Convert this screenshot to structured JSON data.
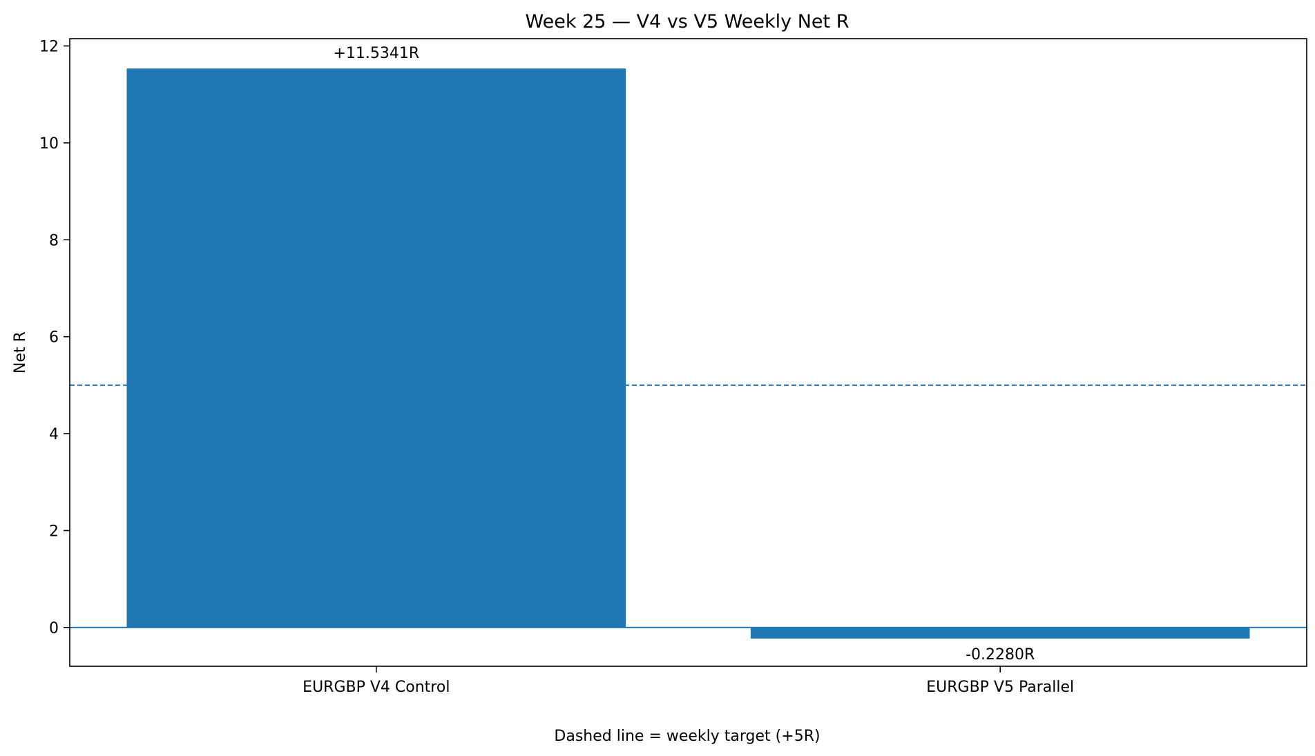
{
  "chart_data": {
    "type": "bar",
    "title": "Week 25 — V4 vs V5 Weekly Net R",
    "xlabel": "",
    "ylabel": "Net R",
    "categories": [
      "EURGBP V4 Control",
      "EURGBP V5 Parallel"
    ],
    "values": [
      11.5341,
      -0.228
    ],
    "bar_labels": [
      "+11.5341R",
      "-0.2280R"
    ],
    "ylim": [
      -0.8,
      12.15
    ],
    "yticks": [
      0,
      2,
      4,
      6,
      8,
      10,
      12
    ],
    "target_line": 5,
    "zero_line": 0,
    "footnote": "Dashed line = weekly target (+5R)",
    "grid": false,
    "legend": "none",
    "colors": {
      "bar": "#1f77b4",
      "target_line": "#1f77b4",
      "zero_line": "#1f77b4"
    }
  }
}
